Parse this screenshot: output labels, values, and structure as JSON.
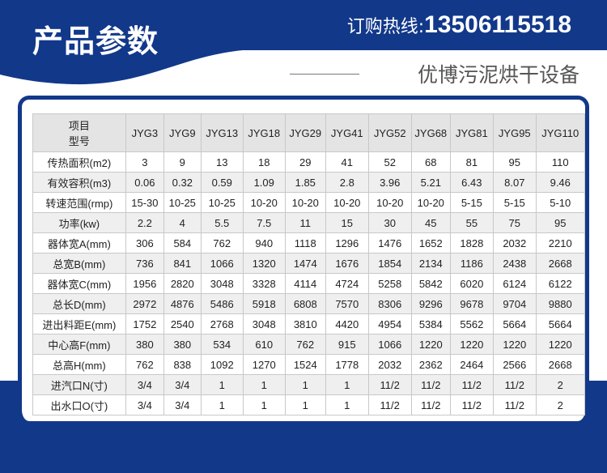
{
  "colors": {
    "brand_blue": "#12388a",
    "header_bg": "#e4e4e4",
    "stripe_bg": "#efefef"
  },
  "header": {
    "title": "产品参数",
    "hotline_label": "订购热线:",
    "hotline_number": "13506115518",
    "subtitle": "优博污泥烘干设备"
  },
  "table": {
    "corner_top": "项目",
    "corner_bottom": "型号",
    "models": [
      "JYG3",
      "JYG9",
      "JYG13",
      "JYG18",
      "JYG29",
      "JYG41",
      "JYG52",
      "JYG68",
      "JYG81",
      "JYG95",
      "JYG110"
    ],
    "rows": [
      {
        "label": "传热面积(m2)",
        "values": [
          "3",
          "9",
          "13",
          "18",
          "29",
          "41",
          "52",
          "68",
          "81",
          "95",
          "110"
        ]
      },
      {
        "label": "有效容积(m3)",
        "values": [
          "0.06",
          "0.32",
          "0.59",
          "1.09",
          "1.85",
          "2.8",
          "3.96",
          "5.21",
          "6.43",
          "8.07",
          "9.46"
        ]
      },
      {
        "label": "转速范围(rmp)",
        "values": [
          "15-30",
          "10-25",
          "10-25",
          "10-20",
          "10-20",
          "10-20",
          "10-20",
          "10-20",
          "5-15",
          "5-15",
          "5-10"
        ]
      },
      {
        "label": "功率(kw)",
        "values": [
          "2.2",
          "4",
          "5.5",
          "7.5",
          "11",
          "15",
          "30",
          "45",
          "55",
          "75",
          "95"
        ]
      },
      {
        "label": "器体宽A(mm)",
        "values": [
          "306",
          "584",
          "762",
          "940",
          "1118",
          "1296",
          "1476",
          "1652",
          "1828",
          "2032",
          "2210"
        ]
      },
      {
        "label": "总宽B(mm)",
        "values": [
          "736",
          "841",
          "1066",
          "1320",
          "1474",
          "1676",
          "1854",
          "2134",
          "1186",
          "2438",
          "2668"
        ]
      },
      {
        "label": "器体宽C(mm)",
        "values": [
          "1956",
          "2820",
          "3048",
          "3328",
          "4114",
          "4724",
          "5258",
          "5842",
          "6020",
          "6124",
          "6122"
        ]
      },
      {
        "label": "总长D(mm)",
        "values": [
          "2972",
          "4876",
          "5486",
          "5918",
          "6808",
          "7570",
          "8306",
          "9296",
          "9678",
          "9704",
          "9880"
        ]
      },
      {
        "label": "进出料距E(mm)",
        "values": [
          "1752",
          "2540",
          "2768",
          "3048",
          "3810",
          "4420",
          "4954",
          "5384",
          "5562",
          "5664",
          "5664"
        ]
      },
      {
        "label": "中心高F(mm)",
        "values": [
          "380",
          "380",
          "534",
          "610",
          "762",
          "915",
          "1066",
          "1220",
          "1220",
          "1220",
          "1220"
        ]
      },
      {
        "label": "总高H(mm)",
        "values": [
          "762",
          "838",
          "1092",
          "1270",
          "1524",
          "1778",
          "2032",
          "2362",
          "2464",
          "2566",
          "2668"
        ]
      },
      {
        "label": "进汽口N(寸)",
        "values": [
          "3/4",
          "3/4",
          "1",
          "1",
          "1",
          "1",
          "11/2",
          "11/2",
          "11/2",
          "11/2",
          "2"
        ]
      },
      {
        "label": "出水口O(寸)",
        "values": [
          "3/4",
          "3/4",
          "1",
          "1",
          "1",
          "1",
          "11/2",
          "11/2",
          "11/2",
          "11/2",
          "2"
        ]
      }
    ]
  }
}
